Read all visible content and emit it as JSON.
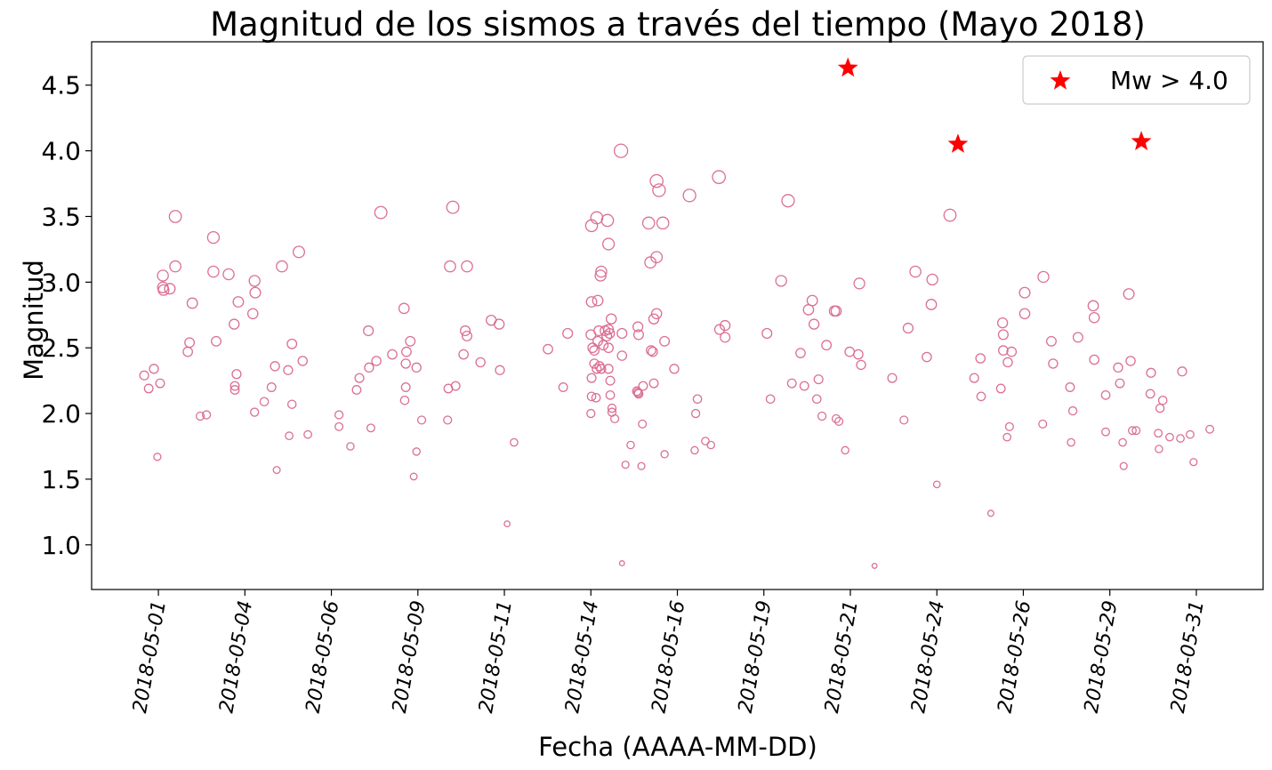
{
  "chart_data": {
    "type": "scatter",
    "title": "Magnitud de los sismos a través del tiempo (Mayo 2018)",
    "x_label": "Fecha (AAAA-MM-DD)",
    "y_label": "Magnitud",
    "xlim": [
      -0.93,
      32.93
    ],
    "ylim": [
      0.66,
      4.83
    ],
    "xticks": [
      {
        "value": 1,
        "label": "2018-05-01"
      },
      {
        "value": 3.5,
        "label": "2018-05-04"
      },
      {
        "value": 6,
        "label": "2018-05-06"
      },
      {
        "value": 8.5,
        "label": "2018-05-09"
      },
      {
        "value": 11,
        "label": "2018-05-11"
      },
      {
        "value": 13.5,
        "label": "2018-05-14"
      },
      {
        "value": 16,
        "label": "2018-05-16"
      },
      {
        "value": 18.5,
        "label": "2018-05-19"
      },
      {
        "value": 21,
        "label": "2018-05-21"
      },
      {
        "value": 23.5,
        "label": "2018-05-24"
      },
      {
        "value": 26,
        "label": "2018-05-26"
      },
      {
        "value": 28.5,
        "label": "2018-05-29"
      },
      {
        "value": 31,
        "label": "2018-05-31"
      }
    ],
    "yticks": [
      {
        "value": 1,
        "label": "1.0"
      },
      1.5,
      {
        "value": 2,
        "label": "2.0"
      },
      2.5,
      {
        "value": 3,
        "label": "3.0"
      },
      3.5,
      {
        "value": 4,
        "label": "4.0"
      },
      4.5
    ],
    "grid": false,
    "legend": "upper right",
    "series": [
      {
        "color": "#db7093",
        "marker": "circle",
        "x": [
          0.59,
          0.72,
          0.87,
          0.97,
          1.05,
          1.13,
          1.13,
          1.15,
          1.33,
          1.49,
          1.49,
          1.85,
          1.9,
          1.98,
          2.21,
          2.39,
          2.59,
          2.59,
          2.67,
          3.03,
          3.19,
          3.21,
          3.21,
          3.26,
          3.31,
          3.73,
          3.78,
          3.8,
          3.78,
          4.06,
          4.27,
          4.37,
          4.42,
          4.57,
          4.75,
          4.78,
          4.86,
          4.86,
          5.06,
          5.17,
          5.32,
          6.22,
          6.22,
          6.55,
          6.73,
          6.81,
          7.07,
          7.09,
          7.14,
          7.3,
          7.43,
          7.76,
          8.1,
          8.12,
          8.15,
          8.15,
          8.17,
          8.28,
          8.38,
          8.46,
          8.46,
          8.61,
          9.36,
          9.38,
          9.43,
          9.51,
          9.59,
          9.82,
          9.87,
          9.92,
          9.92,
          10.31,
          10.62,
          10.85,
          10.87,
          11.08,
          11.28,
          12.26,
          12.7,
          12.83,
          13.5,
          13.5,
          13.52,
          13.52,
          13.52,
          13.52,
          13.55,
          13.6,
          13.6,
          13.65,
          13.67,
          13.67,
          13.7,
          13.7,
          13.73,
          13.75,
          13.78,
          13.8,
          13.8,
          13.86,
          13.91,
          13.96,
          13.98,
          14.01,
          14.01,
          14.01,
          14.01,
          14.04,
          14.06,
          14.06,
          14.09,
          14.11,
          14.11,
          14.19,
          14.37,
          14.4,
          14.4,
          14.4,
          14.5,
          14.65,
          14.83,
          14.86,
          14.86,
          14.88,
          14.88,
          14.96,
          14.99,
          15.01,
          15.17,
          15.22,
          15.24,
          15.29,
          15.32,
          15.32,
          15.4,
          15.4,
          15.4,
          15.47,
          15.58,
          15.63,
          15.63,
          15.91,
          16.35,
          16.5,
          16.53,
          16.58,
          16.81,
          16.97,
          17.2,
          17.22,
          17.38,
          17.38,
          18.59,
          18.69,
          19.0,
          19.2,
          19.31,
          19.56,
          19.67,
          19.79,
          19.9,
          19.95,
          20.03,
          20.08,
          20.18,
          20.31,
          20.54,
          20.59,
          20.59,
          20.67,
          20.85,
          20.98,
          21.23,
          21.26,
          21.31,
          21.7,
          22.21,
          22.55,
          22.67,
          22.88,
          23.21,
          23.34,
          23.37,
          23.5,
          23.88,
          24.58,
          24.76,
          24.78,
          25.06,
          25.35,
          25.4,
          25.42,
          25.42,
          25.53,
          25.55,
          25.6,
          25.66,
          26.04,
          26.04,
          26.56,
          26.58,
          26.81,
          26.86,
          27.35,
          27.38,
          27.43,
          27.58,
          28.02,
          28.05,
          28.05,
          28.38,
          28.38,
          28.74,
          28.79,
          28.87,
          28.9,
          29.05,
          29.1,
          29.15,
          29.26,
          29.67,
          29.69,
          29.9,
          29.92,
          29.95,
          30.03,
          30.23,
          30.54,
          30.59,
          30.82,
          30.92,
          31.39
        ],
        "values": [
          2.29,
          2.19,
          2.34,
          1.67,
          2.23,
          3.05,
          2.96,
          2.94,
          2.95,
          3.5,
          3.12,
          2.47,
          2.54,
          2.84,
          1.98,
          1.99,
          3.34,
          3.08,
          2.55,
          3.06,
          2.68,
          2.21,
          2.18,
          2.3,
          2.85,
          2.76,
          3.01,
          2.92,
          2.01,
          2.09,
          2.2,
          2.36,
          1.57,
          3.12,
          2.33,
          1.83,
          2.53,
          2.07,
          3.23,
          2.4,
          1.84,
          1.99,
          1.9,
          1.75,
          2.18,
          2.27,
          2.63,
          2.35,
          1.89,
          2.4,
          3.53,
          2.45,
          2.8,
          2.1,
          2.2,
          2.38,
          2.47,
          2.55,
          1.52,
          2.35,
          1.71,
          1.95,
          1.95,
          2.19,
          3.12,
          3.57,
          2.21,
          2.45,
          2.63,
          3.12,
          2.59,
          2.39,
          2.71,
          2.68,
          2.33,
          1.16,
          1.78,
          2.49,
          2.2,
          2.61,
          2.0,
          2.6,
          2.13,
          2.27,
          2.85,
          3.43,
          2.5,
          2.38,
          2.48,
          2.12,
          2.34,
          3.49,
          2.86,
          2.55,
          2.63,
          2.36,
          3.05,
          3.08,
          2.34,
          2.52,
          2.63,
          2.59,
          3.47,
          3.29,
          2.64,
          2.5,
          2.34,
          2.61,
          2.25,
          2.14,
          2.72,
          2.04,
          2.01,
          1.96,
          4.0,
          2.61,
          2.44,
          0.86,
          1.61,
          1.76,
          2.17,
          2.16,
          2.66,
          2.6,
          2.15,
          1.6,
          1.92,
          2.21,
          3.45,
          3.15,
          2.48,
          2.47,
          2.72,
          2.23,
          3.77,
          2.76,
          3.19,
          3.7,
          3.45,
          1.69,
          2.55,
          2.34,
          3.66,
          1.72,
          2.0,
          2.11,
          1.79,
          1.76,
          3.8,
          2.64,
          2.67,
          2.58,
          2.61,
          2.11,
          3.01,
          3.62,
          2.23,
          2.46,
          2.21,
          2.79,
          2.86,
          2.68,
          2.11,
          2.26,
          1.98,
          2.52,
          2.78,
          2.78,
          1.96,
          1.94,
          1.72,
          2.47,
          2.45,
          2.99,
          2.37,
          0.84,
          2.27,
          1.95,
          2.65,
          3.08,
          2.43,
          2.83,
          3.02,
          1.46,
          3.51,
          2.27,
          2.42,
          2.13,
          1.24,
          2.19,
          2.69,
          2.6,
          2.48,
          1.82,
          2.39,
          1.9,
          2.47,
          2.92,
          2.76,
          1.92,
          3.04,
          2.55,
          2.38,
          2.2,
          1.78,
          2.02,
          2.58,
          2.82,
          2.73,
          2.41,
          1.86,
          2.14,
          2.35,
          2.23,
          1.78,
          1.6,
          2.91,
          2.4,
          1.87,
          1.87,
          2.15,
          2.31,
          1.85,
          1.73,
          2.04,
          2.1,
          1.82,
          1.81,
          2.32,
          1.84,
          1.63,
          1.88
        ]
      },
      {
        "name": "Mw > 4.0",
        "color": "#ff0000",
        "marker": "star",
        "x": [
          20.93,
          24.11,
          29.41
        ],
        "values": [
          4.63,
          4.05,
          4.07
        ]
      }
    ]
  }
}
